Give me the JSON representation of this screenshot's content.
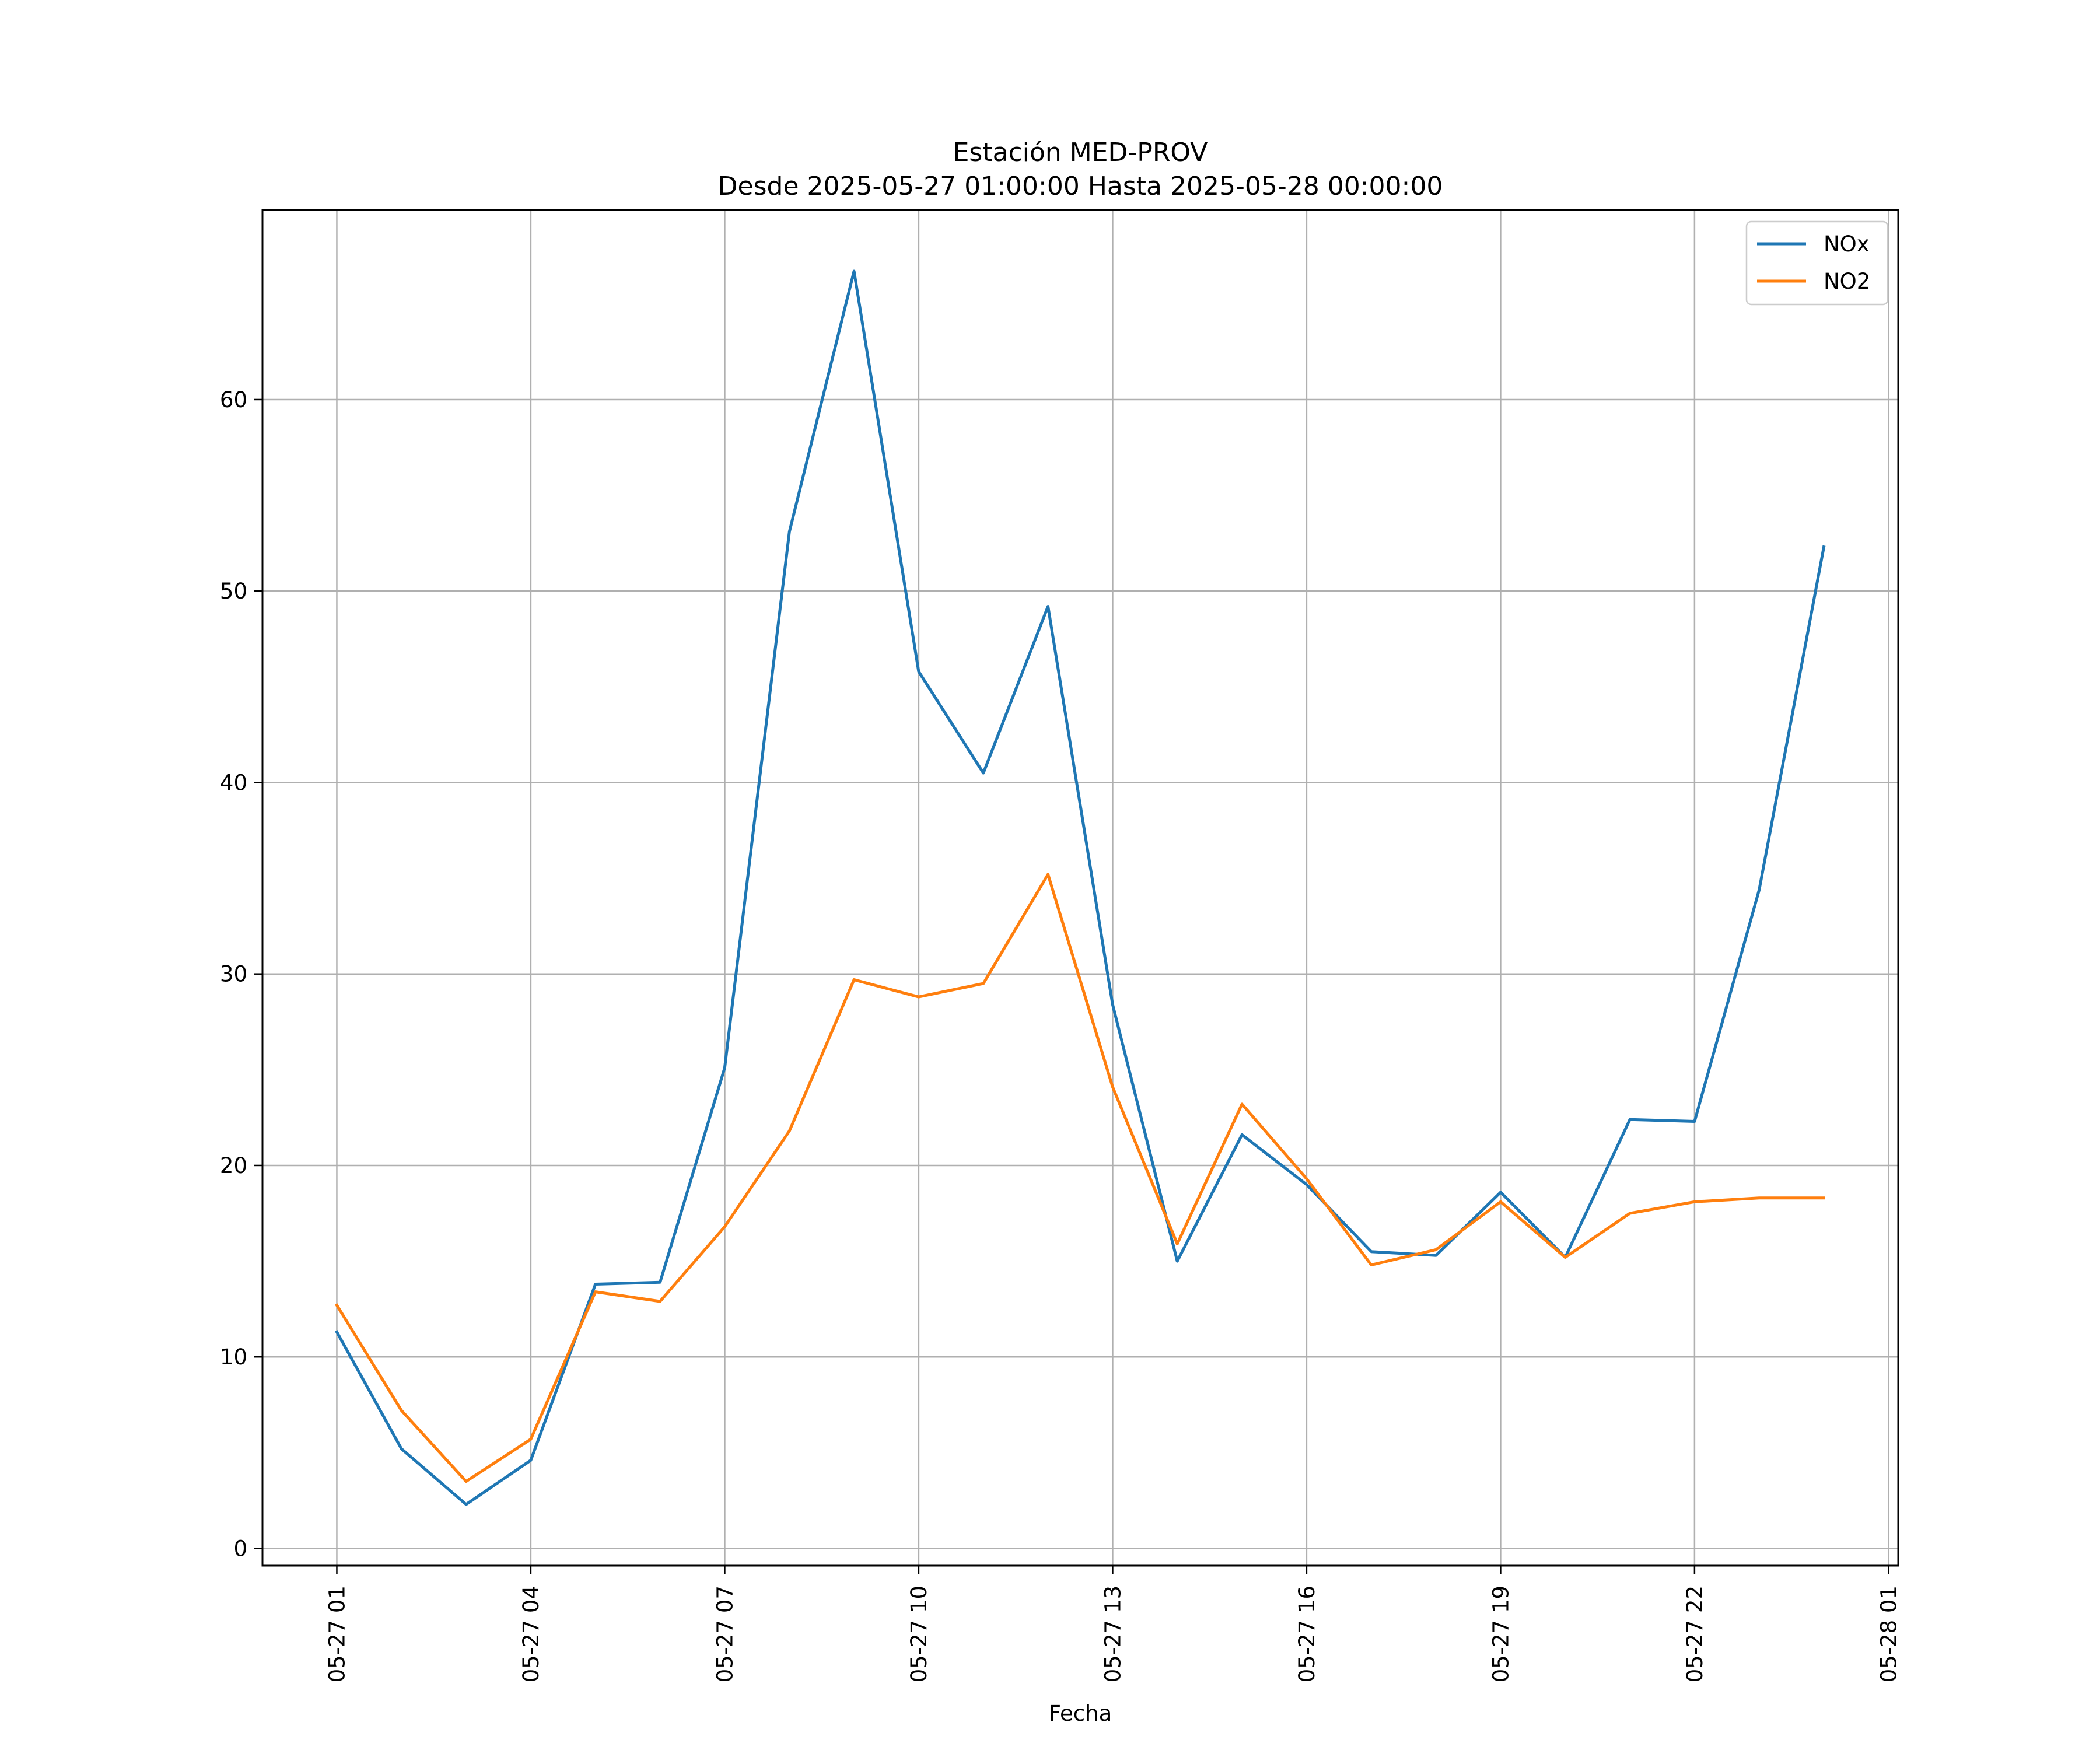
{
  "chart_data": {
    "type": "line",
    "title": "Estación MED-PROV",
    "subtitle": "Desde 2025-05-27 01:00:00 Hasta 2025-05-28 00:00:00",
    "xlabel": "Fecha",
    "ylabel": "",
    "x": [
      "2025-05-27 01:00",
      "2025-05-27 02:00",
      "2025-05-27 03:00",
      "2025-05-27 04:00",
      "2025-05-27 05:00",
      "2025-05-27 06:00",
      "2025-05-27 07:00",
      "2025-05-27 08:00",
      "2025-05-27 09:00",
      "2025-05-27 10:00",
      "2025-05-27 11:00",
      "2025-05-27 12:00",
      "2025-05-27 13:00",
      "2025-05-27 14:00",
      "2025-05-27 15:00",
      "2025-05-27 16:00",
      "2025-05-27 17:00",
      "2025-05-27 18:00",
      "2025-05-27 19:00",
      "2025-05-27 20:00",
      "2025-05-27 21:00",
      "2025-05-27 22:00",
      "2025-05-27 23:00",
      "2025-05-28 00:00"
    ],
    "xlim": [
      "2025-05-26 23:51",
      "2025-05-28 01:09"
    ],
    "x_ticks": [
      {
        "label": "05-27 01",
        "x": "2025-05-27 01:00"
      },
      {
        "label": "05-27 04",
        "x": "2025-05-27 04:00"
      },
      {
        "label": "05-27 07",
        "x": "2025-05-27 07:00"
      },
      {
        "label": "05-27 10",
        "x": "2025-05-27 10:00"
      },
      {
        "label": "05-27 13",
        "x": "2025-05-27 13:00"
      },
      {
        "label": "05-27 16",
        "x": "2025-05-27 16:00"
      },
      {
        "label": "05-27 19",
        "x": "2025-05-27 19:00"
      },
      {
        "label": "05-27 22",
        "x": "2025-05-27 22:00"
      },
      {
        "label": "05-28 01",
        "x": "2025-05-28 01:00"
      }
    ],
    "ylim": [
      -0.9,
      69.9
    ],
    "y_ticks": [
      0,
      10,
      20,
      30,
      40,
      50,
      60
    ],
    "grid": true,
    "legend_position": "top-right",
    "series": [
      {
        "name": "NOx",
        "color": "#1f77b4",
        "values": [
          11.3,
          5.2,
          2.3,
          4.6,
          13.8,
          13.9,
          25.1,
          53.1,
          66.7,
          45.8,
          40.5,
          49.2,
          28.4,
          15.0,
          21.6,
          19.0,
          15.5,
          15.3,
          18.6,
          15.2,
          22.4,
          22.3,
          34.4,
          52.3
        ]
      },
      {
        "name": "NO2",
        "color": "#ff7f0e",
        "values": [
          12.7,
          7.2,
          3.5,
          5.7,
          13.4,
          12.9,
          16.8,
          21.8,
          29.7,
          28.8,
          29.5,
          35.2,
          24.1,
          15.9,
          23.2,
          19.3,
          14.8,
          15.6,
          18.1,
          15.2,
          17.5,
          18.1,
          18.3,
          18.3
        ]
      }
    ]
  }
}
